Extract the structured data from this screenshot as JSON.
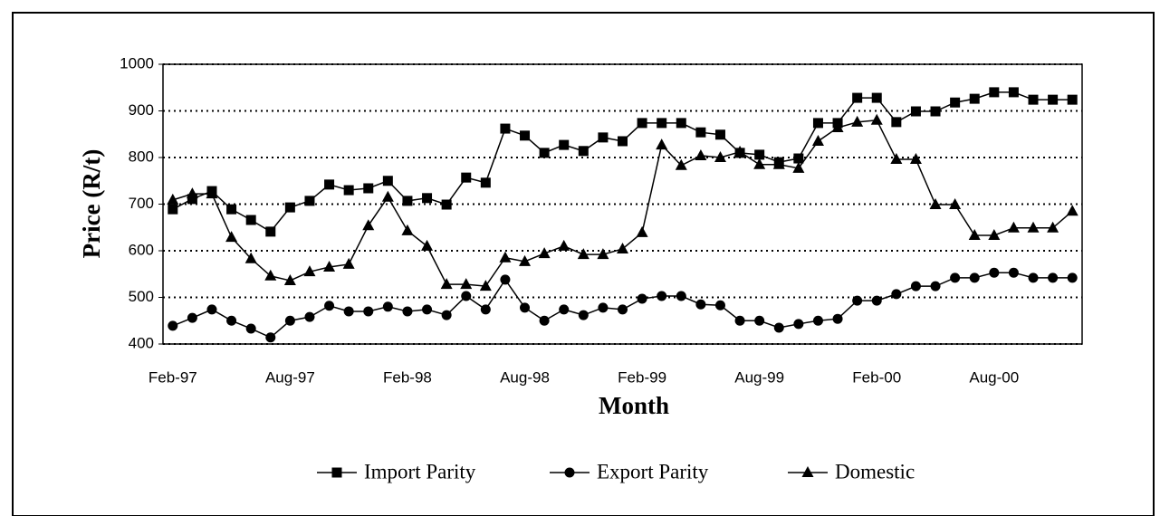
{
  "chart_data": {
    "type": "line",
    "x_label": "Month",
    "y_label": "Price (R/t)",
    "categories": [
      "Feb-97",
      null,
      null,
      null,
      null,
      null,
      "Aug-97",
      null,
      null,
      null,
      null,
      null,
      "Feb-98",
      null,
      null,
      null,
      null,
      null,
      "Aug-98",
      null,
      null,
      null,
      null,
      null,
      "Feb-99",
      null,
      null,
      null,
      null,
      null,
      "Aug-99",
      null,
      null,
      null,
      null,
      null,
      "Feb-00",
      null,
      null,
      null,
      null,
      null,
      "Aug-00",
      null,
      null,
      null,
      null
    ],
    "series": [
      {
        "name": "Import Parity",
        "color": "#000000",
        "marker": "square",
        "values": [
          689,
          711,
          728,
          689,
          666,
          641,
          693,
          707,
          742,
          730,
          734,
          750,
          707,
          713,
          699,
          757,
          746,
          862,
          847,
          810,
          827,
          814,
          843,
          835,
          874,
          874,
          874,
          854,
          849,
          810,
          806,
          790,
          798,
          874,
          874,
          928,
          928,
          876,
          899,
          899,
          918,
          926,
          940,
          940,
          924,
          924,
          924
        ]
      },
      {
        "name": "Export Parity",
        "color": "#000000",
        "marker": "circle",
        "values": [
          439,
          456,
          474,
          450,
          433,
          414,
          450,
          458,
          482,
          470,
          470,
          480,
          470,
          474,
          462,
          503,
          474,
          538,
          478,
          450,
          474,
          462,
          478,
          474,
          497,
          503,
          503,
          485,
          483,
          450,
          450,
          435,
          443,
          450,
          454,
          493,
          493,
          507,
          524,
          524,
          542,
          542,
          553,
          553,
          542,
          542,
          542
        ]
      },
      {
        "name": "Domestic",
        "color": "#000000",
        "marker": "triangle",
        "values": [
          709,
          722,
          722,
          629,
          583,
          546,
          536,
          555,
          565,
          571,
          654,
          715,
          643,
          610,
          528,
          528,
          524,
          585,
          577,
          594,
          610,
          592,
          592,
          604,
          639,
          827,
          783,
          804,
          800,
          812,
          785,
          785,
          777,
          835,
          864,
          876,
          880,
          796,
          796,
          699,
          699,
          633,
          633,
          649,
          649,
          649,
          685
        ]
      }
    ],
    "ylim": [
      400,
      1000
    ],
    "yticks": [
      400,
      500,
      600,
      700,
      800,
      900,
      1000
    ],
    "grid": true,
    "legend": "bottom"
  }
}
